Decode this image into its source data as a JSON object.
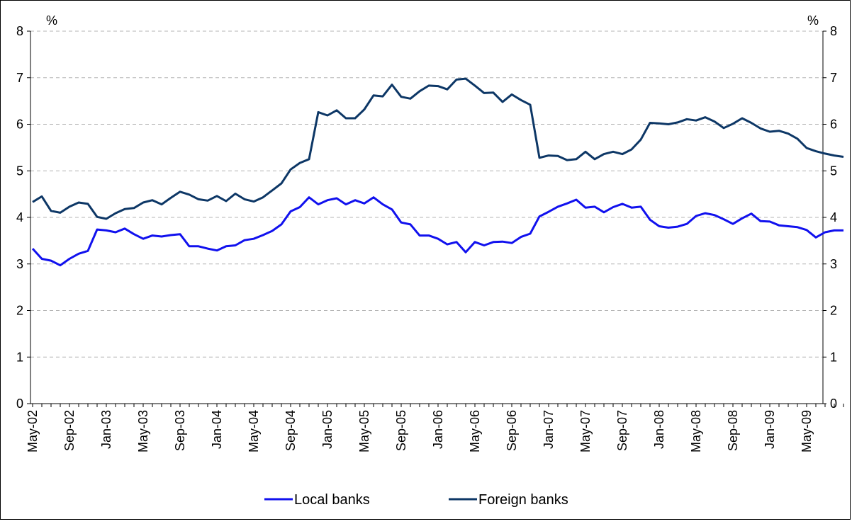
{
  "chart_data": {
    "type": "line",
    "title": "",
    "xlabel": "",
    "ylabel": "",
    "y_unit_left": "%",
    "y_unit_right": "%",
    "ylim": [
      0,
      8
    ],
    "yticks": [
      "0",
      "1",
      "2",
      "3",
      "4",
      "5",
      "6",
      "7",
      "8"
    ],
    "grid": "horizontal dashed",
    "legend_position": "bottom",
    "x_tick_labels": [
      "May-02",
      "Sep-02",
      "Jan-03",
      "May-03",
      "Sep-03",
      "Jan-04",
      "May-04",
      "Sep-04",
      "Jan-05",
      "May-05",
      "Sep-05",
      "Jan-06",
      "May-06",
      "Sep-06",
      "Jan-07",
      "May-07",
      "Sep-07",
      "Jan-08",
      "May-08",
      "Sep-08",
      "Jan-09",
      "May-09"
    ],
    "x": [
      "May-02",
      "Jun-02",
      "Jul-02",
      "Aug-02",
      "Sep-02",
      "Oct-02",
      "Nov-02",
      "Dec-02",
      "Jan-03",
      "Feb-03",
      "Mar-03",
      "Apr-03",
      "May-03",
      "Jun-03",
      "Jul-03",
      "Aug-03",
      "Sep-03",
      "Oct-03",
      "Nov-03",
      "Dec-03",
      "Jan-04",
      "Feb-04",
      "Mar-04",
      "Apr-04",
      "May-04",
      "Jun-04",
      "Jul-04",
      "Aug-04",
      "Sep-04",
      "Oct-04",
      "Nov-04",
      "Dec-04",
      "Jan-05",
      "Feb-05",
      "Mar-05",
      "Apr-05",
      "May-05",
      "Jun-05",
      "Jul-05",
      "Aug-05",
      "Sep-05",
      "Oct-05",
      "Nov-05",
      "Dec-05",
      "Jan-06",
      "Feb-06",
      "Mar-06",
      "Apr-06",
      "May-06",
      "Jun-06",
      "Jul-06",
      "Aug-06",
      "Sep-06",
      "Oct-06",
      "Nov-06",
      "Dec-06",
      "Jan-07",
      "Feb-07",
      "Mar-07",
      "Apr-07",
      "May-07",
      "Jun-07",
      "Jul-07",
      "Aug-07",
      "Sep-07",
      "Oct-07",
      "Nov-07",
      "Dec-07",
      "Jan-08",
      "Feb-08",
      "Mar-08",
      "Apr-08",
      "May-08",
      "Jun-08",
      "Jul-08",
      "Aug-08",
      "Sep-08",
      "Oct-08",
      "Nov-08",
      "Dec-08",
      "Jan-09",
      "Feb-09",
      "Mar-09",
      "Apr-09",
      "May-09",
      "Jun-09",
      "Jul-09",
      "Aug-09",
      "Sep-09"
    ],
    "series": [
      {
        "name": "Local banks",
        "color": "#1111ee",
        "values": [
          3.33,
          3.11,
          3.07,
          2.97,
          3.11,
          3.22,
          3.28,
          3.74,
          3.72,
          3.68,
          3.76,
          3.64,
          3.54,
          3.61,
          3.59,
          3.62,
          3.64,
          3.38,
          3.38,
          3.33,
          3.29,
          3.38,
          3.4,
          3.51,
          3.54,
          3.62,
          3.71,
          3.85,
          4.13,
          4.22,
          4.43,
          4.28,
          4.37,
          4.41,
          4.28,
          4.37,
          4.3,
          4.43,
          4.28,
          4.17,
          3.89,
          3.85,
          3.61,
          3.61,
          3.54,
          3.42,
          3.47,
          3.25,
          3.47,
          3.4,
          3.47,
          3.48,
          3.45,
          3.58,
          3.65,
          4.02,
          4.12,
          4.23,
          4.3,
          4.38,
          4.21,
          4.23,
          4.11,
          4.22,
          4.29,
          4.21,
          4.23,
          3.95,
          3.81,
          3.78,
          3.8,
          3.86,
          4.03,
          4.09,
          4.05,
          3.96,
          3.86,
          3.98,
          4.08,
          3.92,
          3.91,
          3.83,
          3.81,
          3.79,
          3.73,
          3.57,
          3.68,
          3.72,
          3.72
        ]
      },
      {
        "name": "Foreign banks",
        "color": "#0d3766",
        "values": [
          4.33,
          4.45,
          4.14,
          4.1,
          4.23,
          4.32,
          4.29,
          4.01,
          3.97,
          4.09,
          4.18,
          4.2,
          4.32,
          4.37,
          4.28,
          4.42,
          4.55,
          4.49,
          4.39,
          4.36,
          4.46,
          4.35,
          4.51,
          4.39,
          4.34,
          4.43,
          4.58,
          4.73,
          5.03,
          5.17,
          5.25,
          6.26,
          6.19,
          6.3,
          6.13,
          6.13,
          6.32,
          6.62,
          6.6,
          6.85,
          6.59,
          6.55,
          6.71,
          6.83,
          6.82,
          6.75,
          6.96,
          6.98,
          6.83,
          6.67,
          6.68,
          6.48,
          6.64,
          6.52,
          6.42,
          5.28,
          5.33,
          5.32,
          5.23,
          5.25,
          5.41,
          5.25,
          5.36,
          5.41,
          5.36,
          5.46,
          5.67,
          6.03,
          6.02,
          6.0,
          6.04,
          6.11,
          6.08,
          6.15,
          6.06,
          5.92,
          6.01,
          6.13,
          6.03,
          5.91,
          5.84,
          5.86,
          5.8,
          5.69,
          5.49,
          5.42,
          5.37,
          5.33,
          5.3
        ]
      }
    ]
  }
}
